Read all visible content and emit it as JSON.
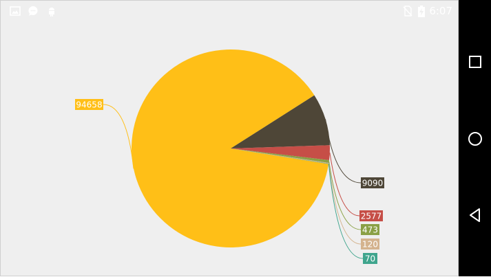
{
  "status_bar": {
    "time": "6:07",
    "icons": [
      "image-icon",
      "chat-icon",
      "android-icon",
      "no-sim-icon",
      "battery-charging-icon"
    ]
  },
  "nav_bar": {
    "buttons": [
      "recents-square-icon",
      "home-circle-icon",
      "back-triangle-icon"
    ]
  },
  "chart_data": {
    "type": "pie",
    "values": [
      94658,
      9090,
      2577,
      473,
      120,
      70
    ],
    "labels": [
      "94658",
      "9090",
      "2577",
      "473",
      "120",
      "70"
    ],
    "colors": [
      "#ffbf17",
      "#4e4637",
      "#c64e47",
      "#8aa045",
      "#d4b38e",
      "#3fa58d"
    ],
    "start_angle_deg": 9,
    "legend": "none"
  }
}
